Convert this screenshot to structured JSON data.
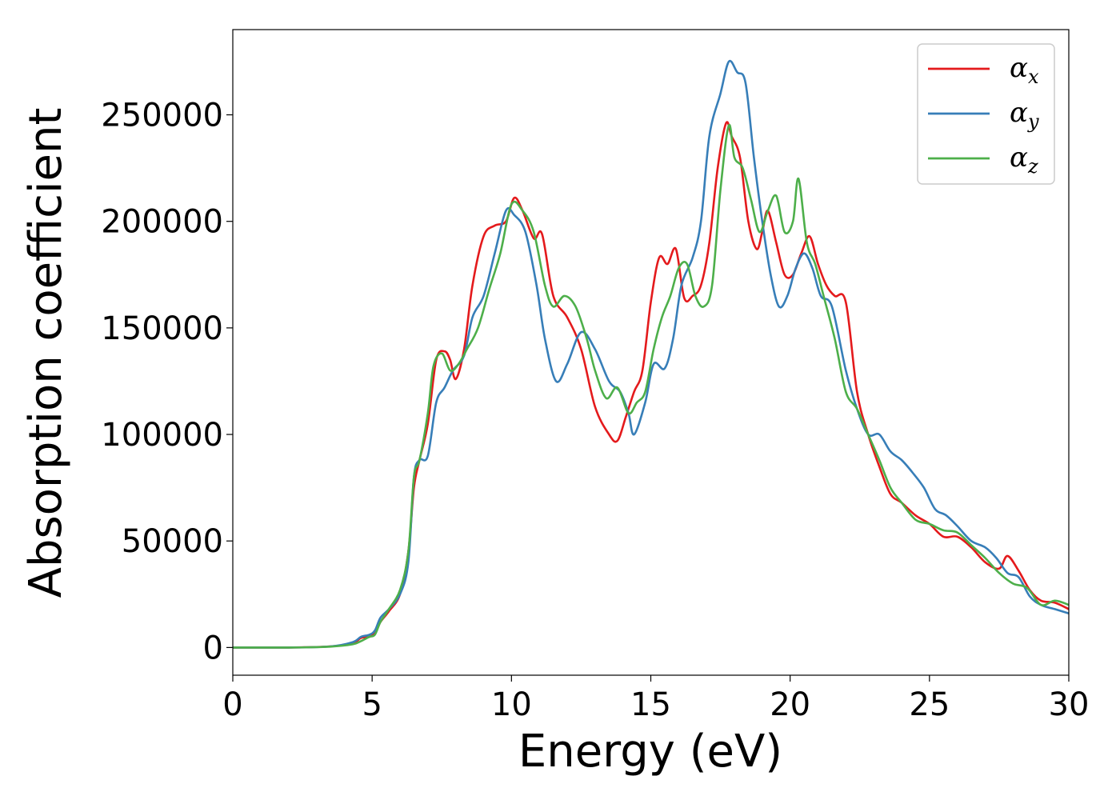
{
  "chart_data": {
    "type": "line",
    "xlabel": "Energy (eV)",
    "ylabel": "Absorption coefficient",
    "xlim": [
      0,
      30
    ],
    "ylim": [
      -13000,
      290000
    ],
    "xticks": [
      0,
      5,
      10,
      15,
      20,
      25,
      30
    ],
    "yticks": [
      0,
      50000,
      100000,
      150000,
      200000,
      250000
    ],
    "grid": false,
    "legend_position": "top-right",
    "series": [
      {
        "name": "α",
        "subscript": "x",
        "color": "#e41a1c",
        "x": [
          0,
          2,
          3.5,
          4.3,
          4.6,
          4.9,
          5.1,
          5.3,
          5.6,
          6.0,
          6.3,
          6.5,
          6.7,
          7.0,
          7.3,
          7.6,
          7.8,
          8.0,
          8.3,
          8.6,
          9.0,
          9.4,
          9.8,
          10.1,
          10.4,
          10.8,
          11.1,
          11.5,
          12.0,
          12.5,
          13.0,
          13.5,
          13.8,
          14.1,
          14.4,
          14.7,
          15.0,
          15.3,
          15.6,
          15.9,
          16.2,
          16.5,
          16.8,
          17.1,
          17.4,
          17.7,
          17.9,
          18.2,
          18.5,
          18.8,
          19.0,
          19.2,
          19.5,
          19.8,
          20.1,
          20.4,
          20.7,
          21.0,
          21.3,
          21.6,
          22.0,
          22.4,
          22.8,
          23.2,
          23.6,
          24.0,
          24.5,
          25.0,
          25.5,
          26.0,
          26.5,
          27.0,
          27.5,
          27.8,
          28.2,
          28.6,
          29.0,
          29.5,
          30.0
        ],
        "y": [
          0,
          0,
          500,
          2000,
          4500,
          5000,
          7000,
          12000,
          17000,
          25000,
          45000,
          75000,
          88000,
          105000,
          135000,
          139000,
          135000,
          126000,
          140000,
          170000,
          193000,
          198000,
          200000,
          211000,
          205000,
          192000,
          194000,
          165000,
          155000,
          140000,
          113000,
          100000,
          97000,
          108000,
          120000,
          130000,
          162000,
          183000,
          180000,
          187000,
          164000,
          165000,
          170000,
          190000,
          225000,
          246000,
          240000,
          230000,
          200000,
          187000,
          195000,
          205000,
          190000,
          175000,
          175000,
          185000,
          193000,
          180000,
          170000,
          165000,
          162000,
          120000,
          100000,
          85000,
          72000,
          68000,
          62000,
          58000,
          52000,
          52000,
          47000,
          40000,
          37000,
          43000,
          36000,
          27000,
          22000,
          21000,
          18000
        ]
      },
      {
        "name": "α",
        "subscript": "y",
        "color": "#377eb8",
        "x": [
          0,
          2,
          3.5,
          4.3,
          4.6,
          4.9,
          5.1,
          5.3,
          5.6,
          6.0,
          6.3,
          6.5,
          6.7,
          7.0,
          7.3,
          7.6,
          7.9,
          8.3,
          8.6,
          9.0,
          9.4,
          9.8,
          10.1,
          10.5,
          10.9,
          11.2,
          11.6,
          12.0,
          12.5,
          13.0,
          13.5,
          13.9,
          14.2,
          14.4,
          14.8,
          15.1,
          15.5,
          15.8,
          16.1,
          16.5,
          16.8,
          17.1,
          17.5,
          17.8,
          18.1,
          18.4,
          18.7,
          19.0,
          19.3,
          19.6,
          19.9,
          20.2,
          20.5,
          20.8,
          21.1,
          21.5,
          22.0,
          22.4,
          22.8,
          23.2,
          23.6,
          24.0,
          24.4,
          24.8,
          25.2,
          25.6,
          26.0,
          26.5,
          27.0,
          27.4,
          27.8,
          28.2,
          28.6,
          29.0,
          29.5,
          30.0
        ],
        "y": [
          0,
          0,
          500,
          2500,
          5000,
          6000,
          8000,
          14000,
          18000,
          25000,
          40000,
          80000,
          88000,
          90000,
          115000,
          122000,
          130000,
          137000,
          155000,
          165000,
          185000,
          205000,
          203000,
          195000,
          170000,
          145000,
          125000,
          133000,
          148000,
          140000,
          125000,
          120000,
          110000,
          100000,
          115000,
          133000,
          131000,
          145000,
          170000,
          183000,
          200000,
          240000,
          260000,
          275000,
          270000,
          265000,
          230000,
          200000,
          175000,
          160000,
          165000,
          178000,
          185000,
          178000,
          165000,
          160000,
          130000,
          112000,
          100000,
          100000,
          92000,
          88000,
          82000,
          75000,
          65000,
          62000,
          57000,
          50000,
          47000,
          42000,
          35000,
          33000,
          24000,
          20000,
          18000,
          16000
        ]
      },
      {
        "name": "α",
        "subscript": "z",
        "color": "#4daf4a",
        "x": [
          0,
          2,
          3.5,
          4.3,
          4.6,
          4.9,
          5.1,
          5.3,
          5.6,
          6.0,
          6.3,
          6.5,
          6.7,
          7.0,
          7.2,
          7.5,
          7.8,
          8.1,
          8.4,
          8.8,
          9.2,
          9.6,
          10.0,
          10.4,
          10.8,
          11.2,
          11.5,
          11.9,
          12.3,
          12.7,
          13.0,
          13.4,
          13.8,
          14.2,
          14.5,
          14.8,
          15.1,
          15.4,
          15.7,
          16.0,
          16.3,
          16.6,
          16.9,
          17.2,
          17.5,
          17.8,
          18.0,
          18.3,
          18.6,
          18.9,
          19.2,
          19.5,
          19.8,
          20.1,
          20.3,
          20.6,
          20.9,
          21.2,
          21.6,
          22.0,
          22.4,
          22.8,
          23.2,
          23.6,
          24.0,
          24.5,
          25.0,
          25.5,
          26.0,
          26.5,
          27.0,
          27.5,
          28.0,
          28.5,
          29.0,
          29.5,
          30.0
        ],
        "y": [
          0,
          0,
          400,
          1500,
          3000,
          5000,
          6000,
          12000,
          18000,
          27000,
          45000,
          80000,
          88000,
          110000,
          132000,
          138000,
          130000,
          133000,
          140000,
          150000,
          168000,
          185000,
          208000,
          205000,
          195000,
          170000,
          160000,
          165000,
          160000,
          145000,
          130000,
          117000,
          122000,
          110000,
          115000,
          120000,
          140000,
          155000,
          165000,
          178000,
          180000,
          165000,
          160000,
          170000,
          215000,
          245000,
          230000,
          225000,
          210000,
          195000,
          205000,
          212000,
          195000,
          200000,
          220000,
          190000,
          180000,
          165000,
          145000,
          120000,
          112000,
          100000,
          88000,
          75000,
          68000,
          60000,
          58000,
          55000,
          54000,
          48000,
          42000,
          35000,
          30000,
          28000,
          20000,
          22000,
          20000
        ]
      }
    ]
  }
}
